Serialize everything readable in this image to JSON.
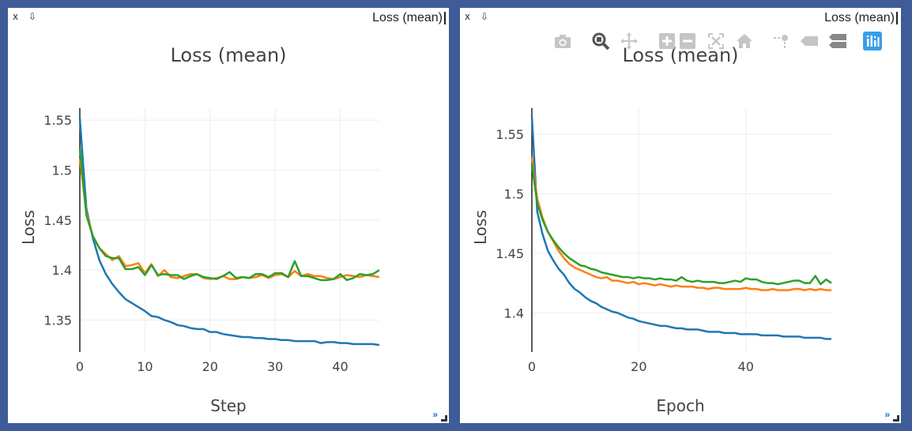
{
  "panes": [
    {
      "close_label": "x",
      "pin_label": "⇩",
      "window_title": "Loss (mean)",
      "expand_label": "»"
    },
    {
      "close_label": "x",
      "pin_label": "⇩",
      "window_title": "Loss (mean)",
      "expand_label": "»"
    }
  ],
  "modebar": {
    "icons": [
      "camera-icon",
      "zoom-icon",
      "pan-icon",
      "zoom-in-icon",
      "zoom-out-icon",
      "autoscale-icon",
      "home-icon",
      "spike-lines-icon",
      "hover-closest-icon",
      "hover-compare-icon",
      "plotly-logo-icon"
    ]
  },
  "colors": {
    "series1": "#1f77b4",
    "series2": "#ff7f0e",
    "series3": "#2ca02c",
    "grid": "#eeeeee"
  },
  "chart_data": [
    {
      "type": "line",
      "title": "Loss (mean)",
      "xlabel": "Step",
      "ylabel": "Loss",
      "xlim": [
        0,
        46
      ],
      "ylim": [
        1.318,
        1.562
      ],
      "xticks": [
        0,
        10,
        20,
        30,
        40
      ],
      "yticks": [
        1.35,
        1.4,
        1.45,
        1.5,
        1.55
      ],
      "ytick_labels": [
        "1.35",
        "1.4",
        "1.45",
        "1.5",
        "1.55"
      ],
      "grid": true,
      "x": [
        0,
        1,
        2,
        3,
        4,
        5,
        6,
        7,
        8,
        9,
        10,
        11,
        12,
        13,
        14,
        15,
        16,
        17,
        18,
        19,
        20,
        21,
        22,
        23,
        24,
        25,
        26,
        27,
        28,
        29,
        30,
        31,
        32,
        33,
        34,
        35,
        36,
        37,
        38,
        39,
        40,
        41,
        42,
        43,
        44,
        45,
        46
      ],
      "series": [
        {
          "values": [
            1.552,
            1.462,
            1.432,
            1.41,
            1.396,
            1.386,
            1.378,
            1.371,
            1.367,
            1.363,
            1.359,
            1.354,
            1.353,
            1.35,
            1.348,
            1.345,
            1.344,
            1.342,
            1.341,
            1.341,
            1.338,
            1.338,
            1.336,
            1.335,
            1.334,
            1.333,
            1.333,
            1.332,
            1.332,
            1.331,
            1.331,
            1.33,
            1.33,
            1.329,
            1.329,
            1.329,
            1.329,
            1.327,
            1.328,
            1.328,
            1.327,
            1.327,
            1.326,
            1.326,
            1.326,
            1.326,
            1.325
          ]
        },
        {
          "values": [
            1.512,
            1.458,
            1.434,
            1.422,
            1.416,
            1.41,
            1.414,
            1.404,
            1.405,
            1.407,
            1.397,
            1.406,
            1.394,
            1.4,
            1.393,
            1.392,
            1.394,
            1.396,
            1.396,
            1.392,
            1.391,
            1.392,
            1.394,
            1.391,
            1.391,
            1.393,
            1.392,
            1.393,
            1.395,
            1.392,
            1.395,
            1.396,
            1.393,
            1.399,
            1.394,
            1.396,
            1.394,
            1.394,
            1.392,
            1.391,
            1.393,
            1.395,
            1.394,
            1.393,
            1.395,
            1.394,
            1.393
          ]
        },
        {
          "values": [
            1.522,
            1.455,
            1.434,
            1.422,
            1.414,
            1.412,
            1.412,
            1.401,
            1.401,
            1.403,
            1.395,
            1.405,
            1.395,
            1.396,
            1.395,
            1.395,
            1.391,
            1.394,
            1.396,
            1.393,
            1.392,
            1.391,
            1.394,
            1.398,
            1.392,
            1.393,
            1.392,
            1.396,
            1.396,
            1.393,
            1.397,
            1.397,
            1.393,
            1.409,
            1.394,
            1.394,
            1.392,
            1.39,
            1.39,
            1.391,
            1.396,
            1.39,
            1.392,
            1.396,
            1.395,
            1.396,
            1.4
          ]
        }
      ]
    },
    {
      "type": "line",
      "title": "Loss (mean)",
      "xlabel": "Epoch",
      "ylabel": "Loss",
      "xlim": [
        0,
        56
      ],
      "ylim": [
        1.367,
        1.572
      ],
      "xticks": [
        0,
        20,
        40
      ],
      "yticks": [
        1.4,
        1.45,
        1.5,
        1.55
      ],
      "ytick_labels": [
        "1.4",
        "1.45",
        "1.5",
        "1.55"
      ],
      "grid": true,
      "x": [
        0,
        1,
        2,
        3,
        4,
        5,
        6,
        7,
        8,
        9,
        10,
        11,
        12,
        13,
        14,
        15,
        16,
        17,
        18,
        19,
        20,
        21,
        22,
        23,
        24,
        25,
        26,
        27,
        28,
        29,
        30,
        31,
        32,
        33,
        34,
        35,
        36,
        37,
        38,
        39,
        40,
        41,
        42,
        43,
        44,
        45,
        46,
        47,
        48,
        49,
        50,
        51,
        52,
        53,
        54,
        55,
        56
      ],
      "series": [
        {
          "values": [
            1.565,
            1.485,
            1.466,
            1.452,
            1.444,
            1.437,
            1.432,
            1.425,
            1.42,
            1.417,
            1.413,
            1.41,
            1.408,
            1.405,
            1.403,
            1.401,
            1.4,
            1.398,
            1.396,
            1.395,
            1.393,
            1.392,
            1.391,
            1.39,
            1.389,
            1.389,
            1.388,
            1.387,
            1.387,
            1.386,
            1.386,
            1.386,
            1.385,
            1.384,
            1.384,
            1.384,
            1.383,
            1.383,
            1.383,
            1.382,
            1.382,
            1.382,
            1.382,
            1.381,
            1.381,
            1.381,
            1.381,
            1.38,
            1.38,
            1.38,
            1.38,
            1.379,
            1.379,
            1.379,
            1.379,
            1.378,
            1.378
          ]
        },
        {
          "values": [
            1.531,
            1.496,
            1.48,
            1.468,
            1.46,
            1.452,
            1.446,
            1.441,
            1.438,
            1.436,
            1.434,
            1.432,
            1.43,
            1.429,
            1.43,
            1.427,
            1.427,
            1.426,
            1.425,
            1.426,
            1.424,
            1.425,
            1.424,
            1.423,
            1.424,
            1.423,
            1.422,
            1.423,
            1.422,
            1.422,
            1.422,
            1.421,
            1.421,
            1.42,
            1.421,
            1.421,
            1.42,
            1.42,
            1.42,
            1.42,
            1.421,
            1.42,
            1.42,
            1.419,
            1.419,
            1.42,
            1.419,
            1.419,
            1.419,
            1.42,
            1.42,
            1.419,
            1.42,
            1.419,
            1.42,
            1.419,
            1.419
          ]
        },
        {
          "values": [
            1.525,
            1.492,
            1.478,
            1.468,
            1.461,
            1.455,
            1.45,
            1.446,
            1.443,
            1.44,
            1.439,
            1.437,
            1.436,
            1.434,
            1.433,
            1.432,
            1.431,
            1.43,
            1.43,
            1.429,
            1.43,
            1.429,
            1.429,
            1.428,
            1.429,
            1.428,
            1.428,
            1.427,
            1.43,
            1.427,
            1.426,
            1.427,
            1.426,
            1.426,
            1.426,
            1.425,
            1.425,
            1.426,
            1.427,
            1.426,
            1.429,
            1.428,
            1.428,
            1.426,
            1.425,
            1.425,
            1.424,
            1.425,
            1.426,
            1.427,
            1.427,
            1.425,
            1.425,
            1.431,
            1.424,
            1.428,
            1.425
          ]
        }
      ]
    }
  ]
}
